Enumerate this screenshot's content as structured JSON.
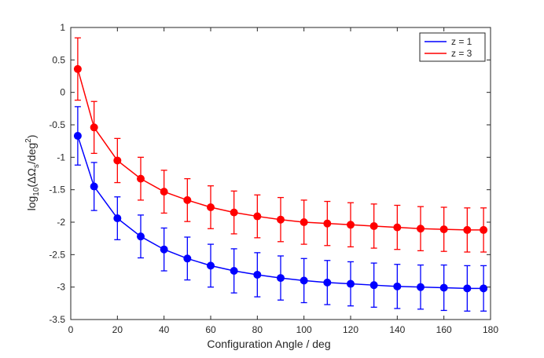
{
  "chart_data": {
    "type": "line",
    "xlabel": "Configuration Angle / deg",
    "ylabel": {
      "prefix": "log",
      "sub": "10",
      "open": "(ΔΩ",
      "sub2": "s",
      "mid": "/deg",
      "sup": "2",
      "close": ")"
    },
    "xlim": [
      0,
      180
    ],
    "ylim": [
      -3.5,
      1
    ],
    "xticks": [
      0,
      20,
      40,
      60,
      80,
      100,
      120,
      140,
      160,
      180
    ],
    "yticks": [
      -3.5,
      -3,
      -2.5,
      -2,
      -1.5,
      -1,
      -0.5,
      0,
      0.5,
      1
    ],
    "xtick_labels": [
      "0",
      "20",
      "40",
      "60",
      "80",
      "100",
      "120",
      "140",
      "160",
      "180"
    ],
    "ytick_labels": [
      "-3.5",
      "-3",
      "-2.5",
      "-2",
      "-1.5",
      "-1",
      "-0.5",
      "0",
      "0.5",
      "1"
    ],
    "grid": false,
    "legend_position": "top-right",
    "x": [
      3,
      10,
      20,
      30,
      40,
      50,
      60,
      70,
      80,
      90,
      100,
      110,
      120,
      130,
      140,
      150,
      160,
      170,
      177
    ],
    "series": [
      {
        "name": "z = 1",
        "color": "#0000ff",
        "values": [
          -0.67,
          -1.45,
          -1.94,
          -2.22,
          -2.42,
          -2.56,
          -2.67,
          -2.75,
          -2.81,
          -2.86,
          -2.9,
          -2.93,
          -2.95,
          -2.97,
          -2.99,
          -3.0,
          -3.01,
          -3.02,
          -3.02
        ],
        "err": [
          0.45,
          0.37,
          0.33,
          0.33,
          0.33,
          0.33,
          0.33,
          0.34,
          0.34,
          0.34,
          0.34,
          0.34,
          0.34,
          0.34,
          0.34,
          0.34,
          0.35,
          0.35,
          0.35
        ]
      },
      {
        "name": "z = 3",
        "color": "#ff0000",
        "values": [
          0.36,
          -0.54,
          -1.05,
          -1.33,
          -1.53,
          -1.66,
          -1.77,
          -1.85,
          -1.91,
          -1.96,
          -2.0,
          -2.02,
          -2.04,
          -2.06,
          -2.08,
          -2.1,
          -2.11,
          -2.12,
          -2.12
        ],
        "err": [
          0.48,
          0.4,
          0.34,
          0.33,
          0.33,
          0.33,
          0.33,
          0.33,
          0.33,
          0.34,
          0.34,
          0.34,
          0.34,
          0.34,
          0.34,
          0.34,
          0.34,
          0.34,
          0.34
        ]
      }
    ]
  }
}
